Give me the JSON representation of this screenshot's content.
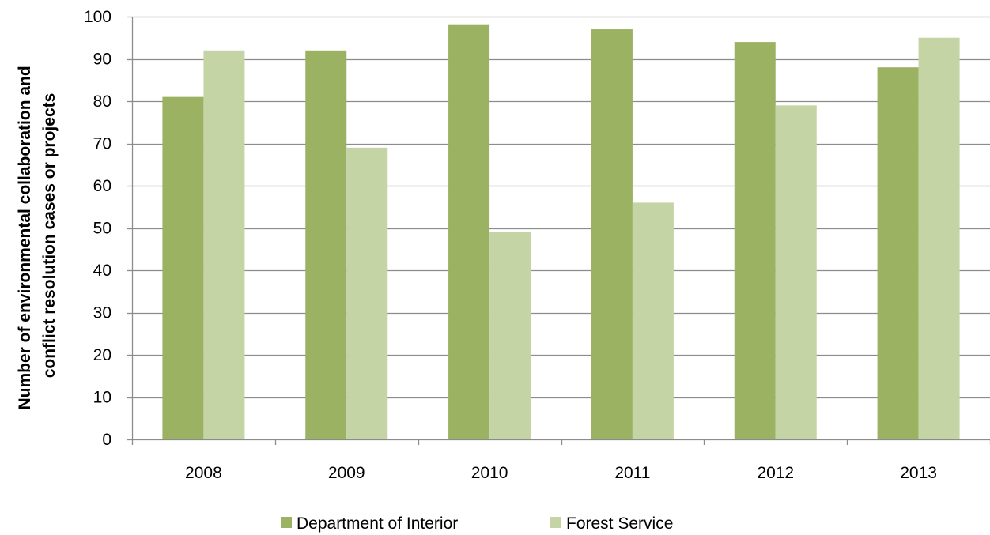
{
  "chart_data": {
    "type": "bar",
    "categories": [
      "2008",
      "2009",
      "2010",
      "2011",
      "2012",
      "2013"
    ],
    "series": [
      {
        "name": "Department of Interior",
        "color": "#9bb262",
        "values": [
          81,
          92,
          98,
          97,
          94,
          88
        ]
      },
      {
        "name": "Forest Service",
        "color": "#c5d4a5",
        "values": [
          92,
          69,
          49,
          56,
          79,
          95
        ]
      }
    ],
    "ylabel": [
      "Number of environmental collaboration and",
      "conflict resolution cases or projects"
    ],
    "ylim": [
      0,
      100
    ],
    "yticks": [
      0,
      10,
      20,
      30,
      40,
      50,
      60,
      70,
      80,
      90,
      100
    ],
    "grid": true,
    "grid_color": "#8c8c8c",
    "legend_position": "bottom-center"
  }
}
